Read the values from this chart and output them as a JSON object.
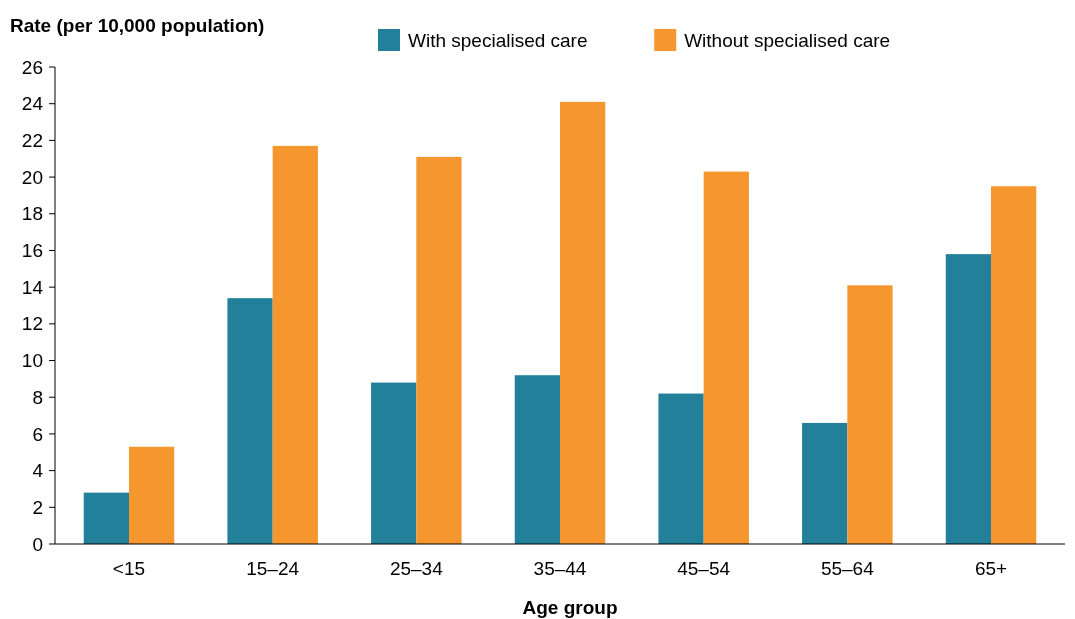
{
  "chart_data": {
    "type": "bar",
    "ylabel": "Rate (per 10,000 population)",
    "xlabel": "Age group",
    "categories": [
      "<15",
      "15–24",
      "25–34",
      "35–44",
      "45–54",
      "55–64",
      "65+"
    ],
    "series": [
      {
        "name": "With specialised care",
        "color": "#23809a",
        "values": [
          2.8,
          13.4,
          8.8,
          9.2,
          8.2,
          6.6,
          15.8
        ]
      },
      {
        "name": "Without specialised care",
        "color": "#f5962e",
        "values": [
          5.3,
          21.7,
          21.1,
          24.1,
          20.3,
          14.1,
          19.5
        ]
      }
    ],
    "ylim": [
      0,
      26
    ],
    "yticks": [
      0,
      2,
      4,
      6,
      8,
      10,
      12,
      14,
      16,
      18,
      20,
      22,
      24,
      26
    ],
    "legend": "top",
    "grid": false
  }
}
